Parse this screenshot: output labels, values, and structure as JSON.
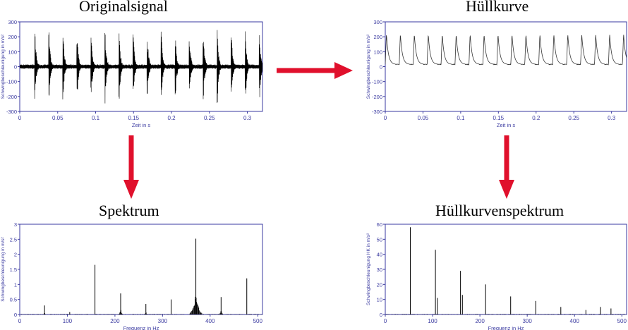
{
  "titles": {
    "original": "Originalsignal",
    "envelope": "Hüllkurve",
    "spectrum": "Spektrum",
    "envelope_spectrum": "Hüllkurvenspektrum"
  },
  "colors": {
    "axes": "#3a3aa0",
    "trace": "#000000",
    "trace_env": "#333333",
    "arrow": "#e0102c"
  },
  "chart_data": [
    {
      "id": "original",
      "type": "line",
      "title": "Originalsignal",
      "xlabel": "Zeit in s",
      "ylabel": "Schwingbeschleunigung in m/s²",
      "xlim": [
        0,
        0.32
      ],
      "ylim": [
        -300,
        300
      ],
      "xticks": [
        0,
        0.05,
        0.1,
        0.15,
        0.2,
        0.25,
        0.3
      ],
      "xtick_labels": [
        "0",
        "0.05",
        "0.1",
        "0.15",
        "0.2",
        "0.25",
        "0.3"
      ],
      "yticks": [
        -300,
        -200,
        -100,
        0,
        100,
        200,
        300
      ],
      "ytick_labels": [
        "-300",
        "-200",
        "-100",
        "0",
        "100",
        "200",
        "300"
      ],
      "impulse_times": [
        0.02,
        0.0385,
        0.057,
        0.0755,
        0.094,
        0.1125,
        0.131,
        0.1495,
        0.168,
        0.1865,
        0.205,
        0.2235,
        0.242,
        0.2605,
        0.279,
        0.2975,
        0.316
      ],
      "impulse_peak": 250,
      "noise_level": 15
    },
    {
      "id": "envelope",
      "type": "line",
      "title": "Hüllkurve",
      "xlabel": "Zeit in s",
      "ylabel": "Schwingbeschleunigung in m/s²",
      "xlim": [
        0,
        0.32
      ],
      "ylim": [
        -300,
        300
      ],
      "xticks": [
        0,
        0.05,
        0.1,
        0.15,
        0.2,
        0.25,
        0.3
      ],
      "xtick_labels": [
        "0",
        "0.05",
        "0.1",
        "0.15",
        "0.2",
        "0.25",
        "0.3"
      ],
      "yticks": [
        -300,
        -200,
        -100,
        0,
        100,
        200,
        300
      ],
      "ytick_labels": [
        "-300",
        "-200",
        "-100",
        "0",
        "100",
        "200",
        "300"
      ],
      "impulse_times": [
        0.0015,
        0.02,
        0.0385,
        0.057,
        0.0755,
        0.094,
        0.1125,
        0.131,
        0.1495,
        0.168,
        0.1865,
        0.205,
        0.2235,
        0.242,
        0.2605,
        0.279,
        0.2975,
        0.316
      ],
      "impulse_peak": 220,
      "baseline": 15
    },
    {
      "id": "spectrum",
      "type": "bar",
      "title": "Spektrum",
      "xlabel": "Frequenz in Hz",
      "ylabel": "Schwingbeschleunigung in m/s²",
      "xlim": [
        0,
        510
      ],
      "ylim": [
        0,
        3
      ],
      "xticks": [
        0,
        100,
        200,
        300,
        400,
        500
      ],
      "xtick_labels": [
        "0",
        "100",
        "200",
        "300",
        "400",
        "500"
      ],
      "yticks": [
        0,
        0.5,
        1,
        1.5,
        2,
        2.5,
        3
      ],
      "ytick_labels": [
        "0",
        "0.5",
        "1",
        "1.5",
        "2",
        "2.5",
        "3"
      ],
      "peaks": [
        {
          "f": 52,
          "a": 0.3,
          "spread": 3
        },
        {
          "f": 105,
          "a": 0.08,
          "spread": 2
        },
        {
          "f": 158,
          "a": 1.65,
          "spread": 0
        },
        {
          "f": 212,
          "a": 0.7,
          "spread": 5
        },
        {
          "f": 265,
          "a": 0.35,
          "spread": 4
        },
        {
          "f": 318,
          "a": 0.5,
          "spread": 0
        },
        {
          "f": 370,
          "a": 2.52,
          "spread": 14
        },
        {
          "f": 423,
          "a": 0.58,
          "spread": 5
        },
        {
          "f": 477,
          "a": 1.2,
          "spread": 0
        }
      ]
    },
    {
      "id": "envelope_spectrum",
      "type": "bar",
      "title": "Hüllkurvenspektrum",
      "xlabel": "Frequenz in Hz",
      "ylabel": "Schwingbeschleunigung HK in m/s²",
      "xlim": [
        0,
        510
      ],
      "ylim": [
        0,
        60
      ],
      "xticks": [
        0,
        100,
        200,
        300,
        400,
        500
      ],
      "xtick_labels": [
        "0",
        "100",
        "200",
        "300",
        "400",
        "500"
      ],
      "yticks": [
        0,
        10,
        20,
        30,
        40,
        50,
        60
      ],
      "ytick_labels": [
        "0",
        "10",
        "20",
        "30",
        "40",
        "50",
        "60"
      ],
      "peaks": [
        {
          "f": 53,
          "a": 58,
          "spread": 0
        },
        {
          "f": 106,
          "a": 43,
          "spread": 0
        },
        {
          "f": 110,
          "a": 11,
          "spread": 0
        },
        {
          "f": 159,
          "a": 29,
          "spread": 0
        },
        {
          "f": 163,
          "a": 13,
          "spread": 0
        },
        {
          "f": 212,
          "a": 20,
          "spread": 0
        },
        {
          "f": 265,
          "a": 12,
          "spread": 0
        },
        {
          "f": 318,
          "a": 9,
          "spread": 0
        },
        {
          "f": 371,
          "a": 5,
          "spread": 0
        },
        {
          "f": 424,
          "a": 3,
          "spread": 0
        },
        {
          "f": 455,
          "a": 5,
          "spread": 0
        },
        {
          "f": 477,
          "a": 4,
          "spread": 0
        }
      ]
    }
  ]
}
